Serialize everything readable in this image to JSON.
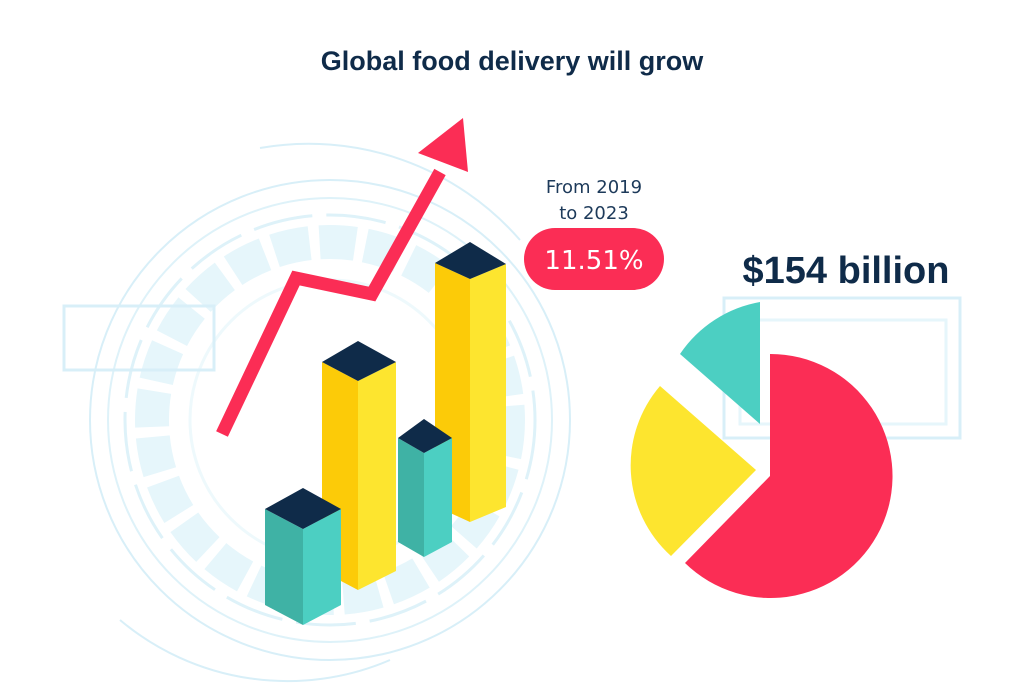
{
  "title": "Global food delivery will grow",
  "period": {
    "line1": "From 2019",
    "line2": "to 2023"
  },
  "growth_badge": "11.51%",
  "market_value": "$154 billion",
  "colors": {
    "navy": "#0f2b49",
    "red": "#fb2d55",
    "yellow": "#fde52f",
    "yellow_dark": "#fccb08",
    "teal": "#4ccfc2",
    "teal_dark": "#3fb2a5",
    "light_blue": "#e5f6fb",
    "light_blue_line": "#d3eef7"
  },
  "icons": [
    "trend-arrow-icon",
    "bar-chart-icon",
    "pie-chart-icon"
  ]
}
